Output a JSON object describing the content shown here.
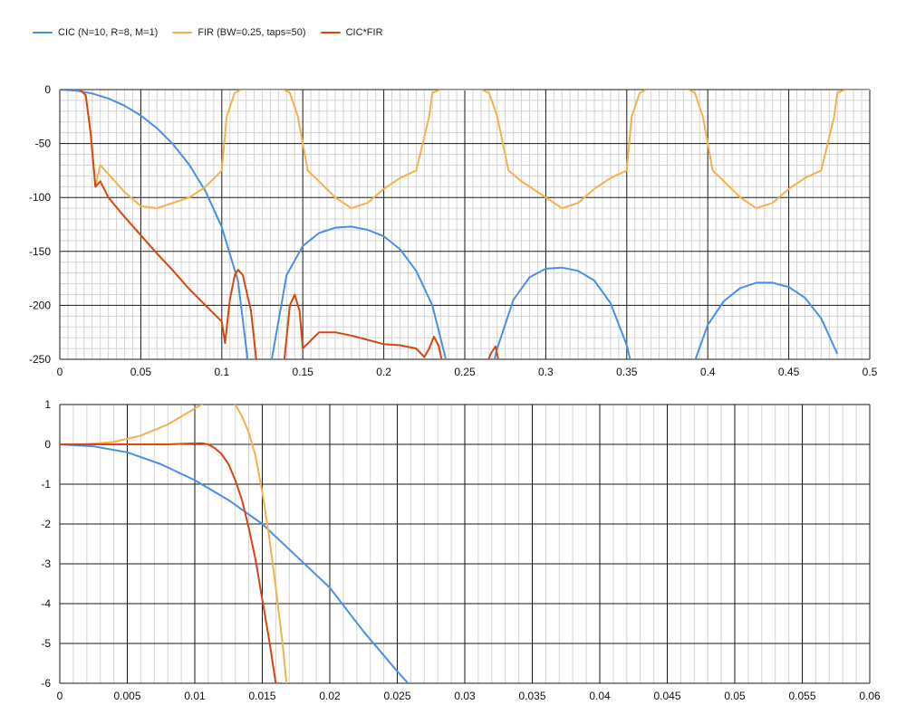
{
  "legend": {
    "items": [
      {
        "label": "CIC (N=10, R=8, M=1)",
        "color": "#4a8fe7"
      },
      {
        "label": "FIR (BW=0.25, taps=50)",
        "color": "#f6b04a"
      },
      {
        "label": "CIC*FIR",
        "color": "#d7460f"
      }
    ]
  },
  "chart_data": [
    {
      "type": "line",
      "title": "",
      "xlabel": "",
      "ylabel": "",
      "xlim": [
        0,
        0.5
      ],
      "ylim": [
        -250,
        0
      ],
      "xticks": [
        0,
        0.05,
        0.1,
        0.15,
        0.2,
        0.25,
        0.3,
        0.35,
        0.4,
        0.45,
        0.5
      ],
      "xtick_labels": [
        "0",
        "0.05",
        "0.1",
        "0.15",
        "0.2",
        "0.25",
        "0.3",
        "0.35",
        "0.4",
        "0.45",
        "0.5"
      ],
      "yticks": [
        0,
        -50,
        -100,
        -150,
        -200,
        -250
      ],
      "ytick_labels": [
        "0",
        "-50",
        "-100",
        "-150",
        "-200",
        "-250"
      ],
      "grid": true,
      "series": [
        {
          "name": "CIC (N=10, R=8, M=1)",
          "color": "#4a8fe7",
          "x": [
            0,
            0.01,
            0.02,
            0.03,
            0.04,
            0.05,
            0.06,
            0.07,
            0.08,
            0.09,
            0.1,
            0.11,
            0.12,
            0.125,
            0.14,
            0.15,
            0.16,
            0.17,
            0.18,
            0.19,
            0.2,
            0.21,
            0.22,
            0.23,
            0.24,
            0.25,
            0.26,
            0.27,
            0.28,
            0.29,
            0.3,
            0.31,
            0.32,
            0.33,
            0.34,
            0.35,
            0.36,
            0.39,
            0.4,
            0.41,
            0.42,
            0.43,
            0.44,
            0.45,
            0.46,
            0.47,
            0.48
          ],
          "y": [
            0,
            -0.9,
            -3.6,
            -8.2,
            -14.9,
            -24,
            -35.8,
            -50.8,
            -69.8,
            -94.3,
            -127.4,
            -177.4,
            -300,
            -300,
            -172,
            -145,
            -133,
            -128,
            -127,
            -130,
            -136,
            -148,
            -168,
            -200,
            -260,
            -300,
            -300,
            -240,
            -195,
            -174,
            -166,
            -165,
            -168,
            -177,
            -198,
            -237,
            -300,
            -260,
            -218,
            -196,
            -184,
            -179,
            -179,
            -183,
            -193,
            -212,
            -245
          ]
        },
        {
          "name": "FIR (BW=0.25, taps=50)",
          "color": "#f6b04a",
          "x": [
            0,
            0.012,
            0.016,
            0.019,
            0.022,
            0.025,
            0.04,
            0.05,
            0.06,
            0.07,
            0.08,
            0.09,
            0.1,
            0.103,
            0.108,
            0.112,
            0.118,
            0.138,
            0.142,
            0.147,
            0.153,
            0.16,
            0.17,
            0.18,
            0.19,
            0.2,
            0.21,
            0.22,
            0.228,
            0.23,
            0.235,
            0.24,
            0.26,
            0.265,
            0.27,
            0.277,
            0.285,
            0.3,
            0.31,
            0.32,
            0.33,
            0.34,
            0.35,
            0.353,
            0.358,
            0.362,
            0.368,
            0.388,
            0.392,
            0.397,
            0.403,
            0.41,
            0.42,
            0.43,
            0.44,
            0.45,
            0.46,
            0.47,
            0.478,
            0.48,
            0.485,
            0.49,
            0.5
          ],
          "y": [
            0,
            1,
            -5,
            -40,
            -90,
            -70,
            -95,
            -108,
            -110,
            -105,
            -100,
            -90,
            -75,
            -25,
            -3,
            0,
            0,
            0,
            -3,
            -25,
            -75,
            -85,
            -100,
            -110,
            -105,
            -92,
            -82,
            -75,
            -25,
            -3,
            0,
            0,
            0,
            -3,
            -25,
            -75,
            -85,
            -100,
            -110,
            -105,
            -92,
            -82,
            -75,
            -25,
            -3,
            0,
            0,
            0,
            -3,
            -25,
            -75,
            -85,
            -100,
            -110,
            -105,
            -92,
            -82,
            -75,
            -25,
            -3,
            0,
            0,
            0
          ]
        },
        {
          "name": "CIC*FIR",
          "color": "#d7460f",
          "x": [
            0,
            0.012,
            0.016,
            0.019,
            0.022,
            0.025,
            0.03,
            0.04,
            0.05,
            0.06,
            0.07,
            0.08,
            0.09,
            0.1,
            0.102,
            0.105,
            0.108,
            0.11,
            0.113,
            0.118,
            0.122,
            0.138,
            0.142,
            0.145,
            0.148,
            0.15,
            0.16,
            0.17,
            0.18,
            0.19,
            0.2,
            0.21,
            0.22,
            0.225,
            0.228,
            0.231,
            0.234,
            0.237,
            0.262,
            0.266,
            0.269,
            0.272
          ],
          "y": [
            0,
            0.5,
            -5,
            -40,
            -90,
            -85,
            -100,
            -118,
            -135,
            -152,
            -168,
            -185,
            -200,
            -215,
            -235,
            -195,
            -172,
            -167,
            -172,
            -205,
            -260,
            -260,
            -200,
            -190,
            -205,
            -240,
            -225,
            -225,
            -228,
            -232,
            -236,
            -237,
            -240,
            -248,
            -240,
            -229,
            -238,
            -260,
            -260,
            -245,
            -238,
            -260
          ]
        }
      ]
    },
    {
      "type": "line",
      "title": "",
      "xlabel": "",
      "ylabel": "",
      "xlim": [
        0,
        0.06
      ],
      "ylim": [
        -6,
        1
      ],
      "xticks": [
        0,
        0.005,
        0.01,
        0.015,
        0.02,
        0.025,
        0.03,
        0.035,
        0.04,
        0.045,
        0.05,
        0.055,
        0.06
      ],
      "xtick_labels": [
        "0",
        "0.005",
        "0.01",
        "0.015",
        "0.02",
        "0.025",
        "0.03",
        "0.035",
        "0.04",
        "0.045",
        "0.05",
        "0.055",
        "0.06"
      ],
      "yticks": [
        1,
        0,
        -1,
        -2,
        -3,
        -4,
        -5,
        -6
      ],
      "ytick_labels": [
        "1",
        "0",
        "-1",
        "-2",
        "-3",
        "-4",
        "-5",
        "-6"
      ],
      "grid": true,
      "series": [
        {
          "name": "CIC (N=10, R=8, M=1)",
          "color": "#4a8fe7",
          "x": [
            0,
            0.0025,
            0.005,
            0.0075,
            0.01,
            0.0125,
            0.015,
            0.0175,
            0.02,
            0.0225,
            0.025,
            0.0258
          ],
          "y": [
            0,
            -0.05,
            -0.2,
            -0.5,
            -0.9,
            -1.4,
            -2.0,
            -2.8,
            -3.6,
            -4.7,
            -5.7,
            -6.0
          ]
        },
        {
          "name": "FIR (BW=0.25, taps=50)",
          "color": "#f6b04a",
          "x": [
            0,
            0.002,
            0.004,
            0.006,
            0.008,
            0.01,
            0.011,
            0.0115,
            0.012,
            0.0125,
            0.013,
            0.0135,
            0.014,
            0.0145,
            0.015,
            0.0155,
            0.016,
            0.0165,
            0.0168
          ],
          "y": [
            0,
            0.01,
            0.06,
            0.22,
            0.5,
            0.9,
            1.1,
            1.16,
            1.2,
            1.16,
            1.0,
            0.7,
            0.3,
            -0.3,
            -1.2,
            -2.3,
            -3.6,
            -5.0,
            -6.0
          ]
        },
        {
          "name": "CIC*FIR",
          "color": "#d7460f",
          "x": [
            0,
            0.004,
            0.008,
            0.0095,
            0.0105,
            0.011,
            0.0115,
            0.012,
            0.0125,
            0.013,
            0.0135,
            0.014,
            0.0145,
            0.015,
            0.0155,
            0.016
          ],
          "y": [
            0,
            0,
            0,
            0.02,
            0.03,
            0.0,
            -0.1,
            -0.25,
            -0.5,
            -0.9,
            -1.4,
            -2.1,
            -2.9,
            -3.9,
            -4.9,
            -6.0
          ]
        }
      ]
    }
  ]
}
